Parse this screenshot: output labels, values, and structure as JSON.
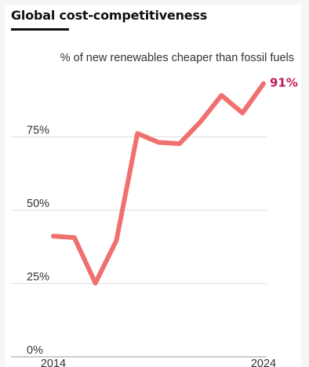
{
  "title": "Global cost-competitiveness",
  "colors": {
    "line": "#f07070",
    "end_label": "#c0185a",
    "grid": "#dddddd",
    "text": "#333333",
    "title": "#111111"
  },
  "chart_data": {
    "type": "line",
    "subtitle": "% of new renewables cheaper than fossil fuels",
    "x": [
      2014,
      2015,
      2016,
      2017,
      2018,
      2019,
      2020,
      2021,
      2022,
      2023,
      2024
    ],
    "series": [
      {
        "values": [
          39,
          38.5,
          23,
          37.5,
          74,
          71,
          70.5,
          78,
          87,
          81,
          91
        ]
      }
    ],
    "ylim": [
      0,
      100
    ],
    "y_ticks": [
      0,
      25,
      50,
      75
    ],
    "y_tick_labels": [
      "0%",
      "25%",
      "50%",
      "75%"
    ],
    "x_tick_labels": [
      "2014",
      "2024"
    ],
    "end_label": "91%",
    "grid": true
  }
}
